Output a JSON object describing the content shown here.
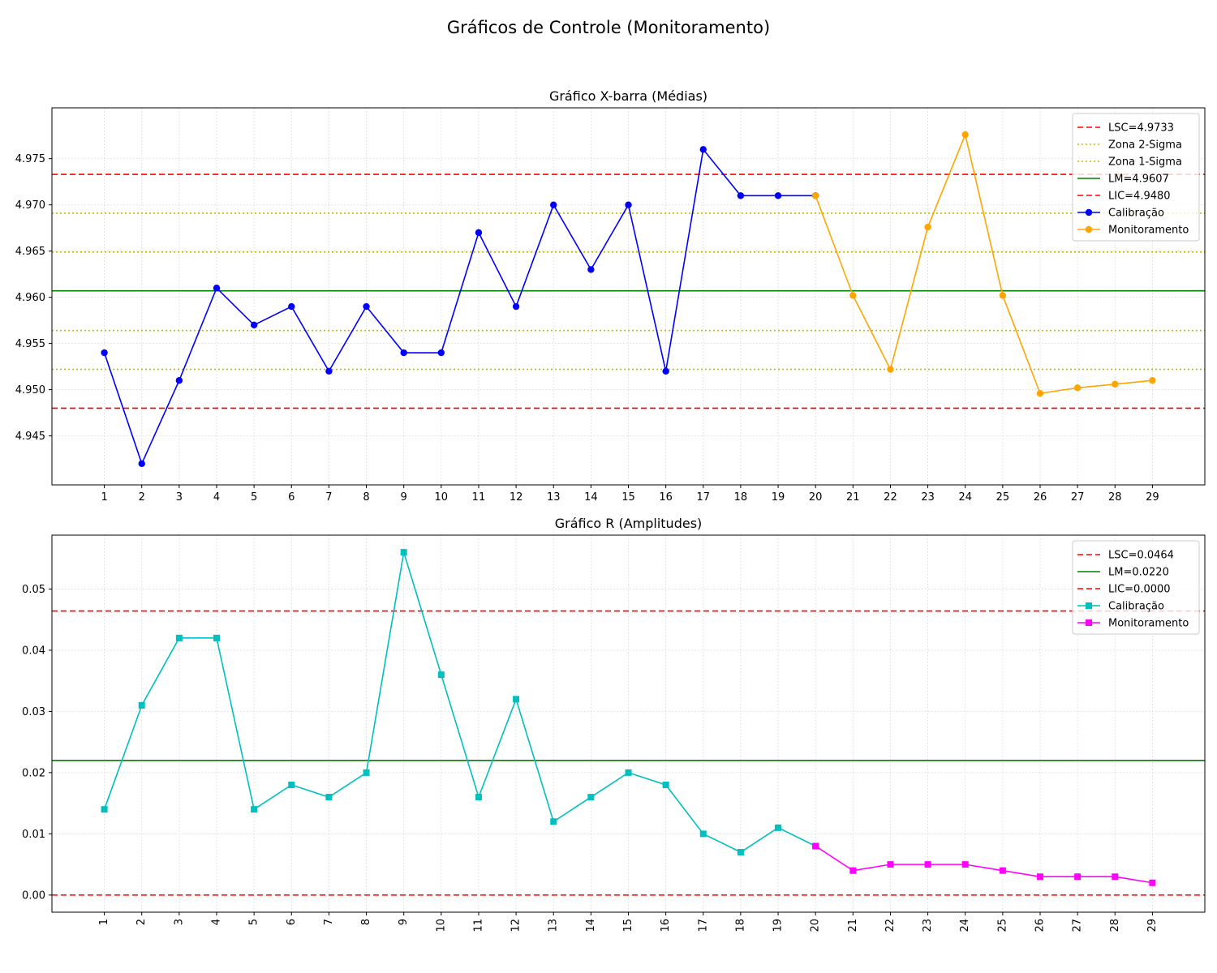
{
  "figure": {
    "suptitle": "Gráficos de Controle (Monitoramento)"
  },
  "chart_data": [
    {
      "type": "line",
      "title": "Gráfico X-barra (Médias)",
      "xlabel": "",
      "ylabel": "",
      "x": [
        1,
        2,
        3,
        4,
        5,
        6,
        7,
        8,
        9,
        10,
        11,
        12,
        13,
        14,
        15,
        16,
        17,
        18,
        19,
        20,
        21,
        22,
        23,
        24,
        25,
        26,
        27,
        28,
        29
      ],
      "xlim": [
        -0.4,
        30.4
      ],
      "ylim": [
        4.9397,
        4.9805
      ],
      "yticks": [
        "4.945",
        "4.950",
        "4.955",
        "4.960",
        "4.965",
        "4.970",
        "4.975"
      ],
      "ytick_values": [
        4.945,
        4.95,
        4.955,
        4.96,
        4.965,
        4.97,
        4.975
      ],
      "grid": true,
      "legend_position": "top-right",
      "ref_lines": [
        {
          "label": "LSC=4.9733",
          "y": 4.9733,
          "color": "#ff0000",
          "style": "dashed"
        },
        {
          "label": "Zona 2-Sigma",
          "y": [
            4.9691,
            4.9522
          ],
          "color": "#bfbf00",
          "style": "dotted"
        },
        {
          "label": "Zona 1-Sigma",
          "y": [
            4.9649,
            4.9564
          ],
          "color": "#bfbf00",
          "style": "dotted"
        },
        {
          "label": "LM=4.9607",
          "y": 4.9607,
          "color": "#008000",
          "style": "solid"
        },
        {
          "label": "LIC=4.9480",
          "y": 4.948,
          "color": "#ff0000",
          "style": "dashed"
        }
      ],
      "series": [
        {
          "name": "Calibração",
          "color": "#0000ff",
          "marker": "circle",
          "x": [
            1,
            2,
            3,
            4,
            5,
            6,
            7,
            8,
            9,
            10,
            11,
            12,
            13,
            14,
            15,
            16,
            17,
            18,
            19,
            20
          ],
          "values": [
            4.954,
            4.942,
            4.951,
            4.961,
            4.957,
            4.959,
            4.952,
            4.959,
            4.954,
            4.954,
            4.967,
            4.959,
            4.97,
            4.963,
            4.97,
            4.952,
            4.976,
            4.971,
            4.971,
            4.971
          ]
        },
        {
          "name": "Monitoramento",
          "color": "#ffa500",
          "marker": "circle",
          "x": [
            20,
            21,
            22,
            23,
            24,
            25,
            26,
            27,
            28,
            29
          ],
          "values": [
            4.971,
            4.9602,
            4.9522,
            4.9676,
            4.9776,
            4.9602,
            4.9496,
            4.9502,
            4.9506,
            4.951
          ]
        }
      ]
    },
    {
      "type": "line",
      "title": "Gráfico R (Amplitudes)",
      "xlabel": "",
      "ylabel": "",
      "x": [
        1,
        2,
        3,
        4,
        5,
        6,
        7,
        8,
        9,
        10,
        11,
        12,
        13,
        14,
        15,
        16,
        17,
        18,
        19,
        20,
        21,
        22,
        23,
        24,
        25,
        26,
        27,
        28,
        29
      ],
      "xlim": [
        -0.4,
        30.4
      ],
      "ylim": [
        -0.0028,
        0.0588
      ],
      "yticks": [
        "0.00",
        "0.01",
        "0.02",
        "0.03",
        "0.04",
        "0.05"
      ],
      "ytick_values": [
        0,
        0.01,
        0.02,
        0.03,
        0.04,
        0.05
      ],
      "grid": true,
      "legend_position": "top-right",
      "ref_lines": [
        {
          "label": "LSC=0.0464",
          "y": 0.0464,
          "color": "#ff0000",
          "style": "dashed"
        },
        {
          "label": "LM=0.0220",
          "y": 0.022,
          "color": "#008000",
          "style": "solid"
        },
        {
          "label": "LIC=0.0000",
          "y": 0.0,
          "color": "#ff0000",
          "style": "dashed"
        }
      ],
      "series": [
        {
          "name": "Calibração",
          "color": "#00bfbf",
          "marker": "square",
          "x": [
            1,
            2,
            3,
            4,
            5,
            6,
            7,
            8,
            9,
            10,
            11,
            12,
            13,
            14,
            15,
            16,
            17,
            18,
            19,
            20
          ],
          "values": [
            0.014,
            0.031,
            0.042,
            0.042,
            0.014,
            0.018,
            0.016,
            0.02,
            0.056,
            0.036,
            0.016,
            0.032,
            0.012,
            0.016,
            0.02,
            0.018,
            0.01,
            0.007,
            0.011,
            0.008
          ]
        },
        {
          "name": "Monitoramento",
          "color": "#ff00ff",
          "marker": "square",
          "x": [
            20,
            21,
            22,
            23,
            24,
            25,
            26,
            27,
            28,
            29
          ],
          "values": [
            0.008,
            0.004,
            0.005,
            0.005,
            0.005,
            0.004,
            0.003,
            0.003,
            0.003,
            0.002
          ]
        }
      ]
    }
  ]
}
